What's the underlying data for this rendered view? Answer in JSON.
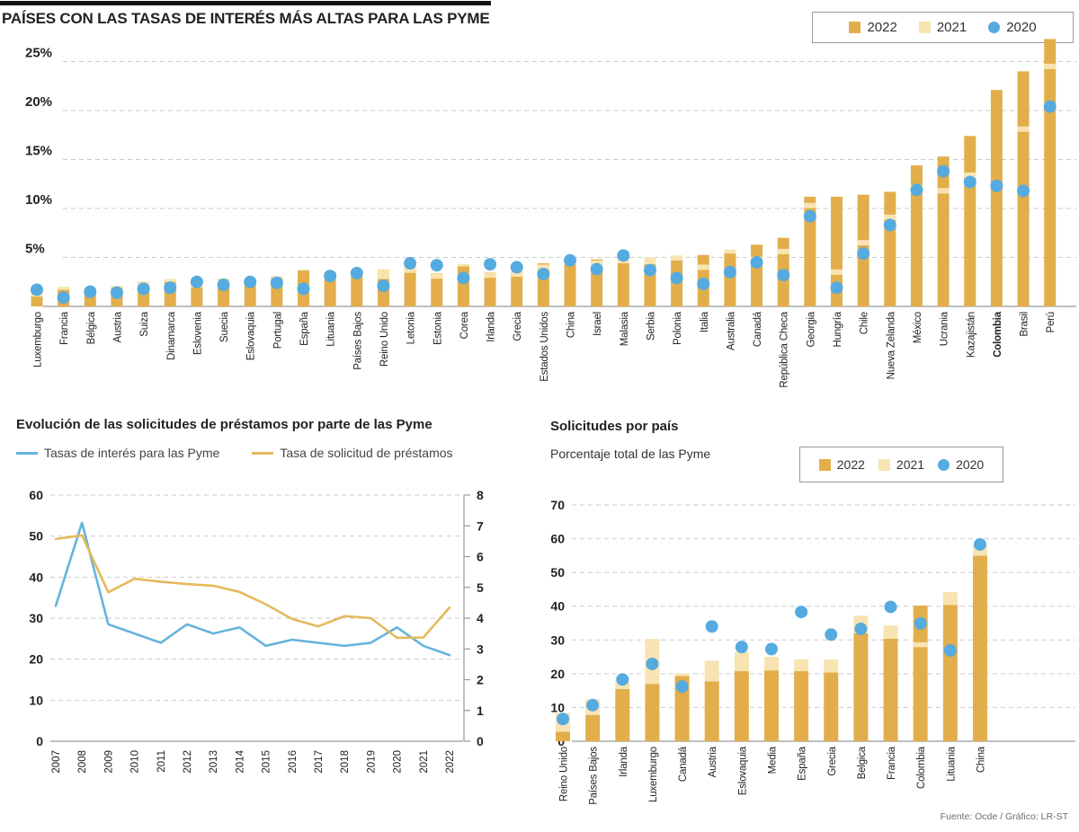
{
  "footer": {
    "source": "Fuente: Ocde / Gráfico: LR-ST"
  },
  "colors": {
    "bar2022": "#E2AE4C",
    "bar2021": "#F8E4B2",
    "dot2020": "#55ABE0",
    "line_interes": "#66B4DC",
    "line_solicitud": "#E5B95C",
    "grid": "#CBCBCB",
    "axis": "#9A9A9A",
    "text": "#222222"
  },
  "chart_data": [
    {
      "id": "tasas-por-pais",
      "type": "bar",
      "title": "PAÍSES CON LAS TASAS DE INTERÉS MÁS ALTAS PARA LAS PYME",
      "ylim": [
        0,
        28
      ],
      "yticks": [
        5,
        10,
        15,
        20,
        25
      ],
      "ytick_labels": [
        "5%",
        "10%",
        "15%",
        "20%",
        "25%"
      ],
      "grid": true,
      "legend_position": "top-right",
      "bold_categories": [
        "Colombia"
      ],
      "categories": [
        "Luxemburgo",
        "Francia",
        "Bélgica",
        "Austria",
        "Suiza",
        "Dinamarca",
        "Eslovenia",
        "Suecia",
        "Eslovaquia",
        "Portugal",
        "España",
        "Lituania",
        "Países Bajos",
        "Reino Unido",
        "Letonia",
        "Estonia",
        "Corea",
        "Irlanda",
        "Grecia",
        "Estados Unidos",
        "China",
        "Israel",
        "Malasia",
        "Serbia",
        "Polonia",
        "Italia",
        "Australia",
        "Canadá",
        "República Checa",
        "Georgia",
        "Hungría",
        "Chile",
        "Nueva Zelanda",
        "México",
        "Ucrania",
        "Kazajistán",
        "Colombia",
        "Brasil",
        "Perú"
      ],
      "series": [
        {
          "name": "2022",
          "style": "bar-dark",
          "values": [
            1.0,
            1.7,
            1.9,
            1.9,
            2.5,
            2.5,
            2.5,
            2.8,
            2.7,
            2.9,
            3.7,
            3.5,
            3.7,
            2.8,
            4.0,
            3.4,
            4.1,
            3.5,
            3.6,
            4.4,
            4.3,
            4.8,
            4.4,
            4.3,
            4.7,
            5.25,
            5.4,
            6.3,
            7.0,
            11.2,
            11.2,
            11.4,
            11.7,
            14.4,
            15.3,
            17.4,
            22.1,
            24.0,
            27.3
          ]
        },
        {
          "name": "2021",
          "style": "bar-light",
          "values": [
            1.4,
            2.0,
            1.6,
            2.1,
            2.2,
            2.8,
            2.2,
            2.5,
            2.4,
            3.1,
            1.9,
            3.2,
            3.3,
            3.8,
            3.7,
            3.1,
            4.35,
            3.2,
            3.3,
            4.0,
            4.6,
            4.4,
            4.9,
            5.0,
            5.2,
            4.0,
            5.8,
            4.8,
            5.6,
            10.3,
            3.5,
            6.5,
            9.1,
            12.1,
            11.8,
            13.4,
            null,
            18.1,
            24.5
          ]
        },
        {
          "name": "2020",
          "style": "dot",
          "values": [
            1.7,
            0.9,
            1.5,
            1.4,
            1.8,
            1.9,
            2.5,
            2.2,
            2.5,
            2.4,
            1.8,
            3.1,
            3.4,
            2.1,
            4.4,
            4.2,
            2.9,
            4.3,
            4.0,
            3.3,
            4.7,
            3.8,
            5.2,
            3.7,
            2.9,
            2.3,
            3.5,
            4.5,
            3.2,
            9.2,
            1.9,
            5.4,
            8.3,
            11.9,
            13.8,
            12.7,
            12.3,
            11.8,
            20.4
          ]
        }
      ]
    },
    {
      "id": "evolucion-solicitudes",
      "type": "line",
      "title": "Evolución de las solicitudes de préstamos por parte de las Pyme",
      "x": [
        "2007",
        "2008",
        "2009",
        "2010",
        "2011",
        "2012",
        "2013",
        "2014",
        "2015",
        "2016",
        "2017",
        "2018",
        "2019",
        "2020",
        "2021",
        "2022"
      ],
      "left_ylim": [
        0,
        60
      ],
      "left_yticks": [
        0,
        10,
        20,
        30,
        40,
        50,
        60
      ],
      "right_ylim": [
        0,
        8
      ],
      "right_yticks": [
        0,
        1,
        2,
        3,
        4,
        5,
        6,
        7,
        8
      ],
      "grid": true,
      "series": [
        {
          "name": "Tasas de interés para las Pyme",
          "axis": "right",
          "color_key": "line_interes",
          "values": [
            4.4,
            7.1,
            3.8,
            3.5,
            3.2,
            3.8,
            3.5,
            3.7,
            3.1,
            3.3,
            3.2,
            3.1,
            3.2,
            3.7,
            3.1,
            2.8
          ]
        },
        {
          "name": "Tasa de solicitud de préstamos",
          "axis": "left",
          "color_key": "line_solicitud",
          "values": [
            49.3,
            50.2,
            36.3,
            39.6,
            38.9,
            38.3,
            37.9,
            36.4,
            33.4,
            29.8,
            28.0,
            30.5,
            30.0,
            25.2,
            25.3,
            32.6
          ]
        }
      ]
    },
    {
      "id": "solicitudes-por-pais",
      "type": "bar",
      "title": "Solicitudes por país",
      "subtitle": "Porcentaje total de las Pyme",
      "ylim": [
        0,
        70
      ],
      "yticks": [
        0,
        10,
        20,
        30,
        40,
        50,
        60,
        70
      ],
      "grid": true,
      "legend_position": "top-right",
      "categories": [
        "Reino Unido",
        "Países Bajos",
        "Irlanda",
        "Luxemburgo",
        "Canadá",
        "Austria",
        "Eslovaquia",
        "Media",
        "España",
        "Grecia",
        "Belgica",
        "Francia",
        "Colombia",
        "Lituania",
        "China"
      ],
      "series": [
        {
          "name": "2022",
          "style": "bar-dark",
          "values": [
            2.8,
            7.8,
            15.5,
            17.0,
            19.3,
            17.7,
            20.8,
            21.0,
            20.8,
            20.4,
            32.0,
            30.4,
            40.2,
            40.4,
            55.0
          ]
        },
        {
          "name": "2021",
          "style": "bar-light",
          "values": [
            8.4,
            12.4,
            17.7,
            30.3,
            20.1,
            23.9,
            26.5,
            25.0,
            24.3,
            24.2,
            37.2,
            34.3,
            28.6,
            44.2,
            58.0
          ]
        },
        {
          "name": "2020",
          "style": "dot",
          "values": [
            6.6,
            10.7,
            18.3,
            22.9,
            16.2,
            34.0,
            27.9,
            27.3,
            38.3,
            31.6,
            33.3,
            39.8,
            34.9,
            26.9,
            58.3
          ]
        }
      ]
    }
  ]
}
